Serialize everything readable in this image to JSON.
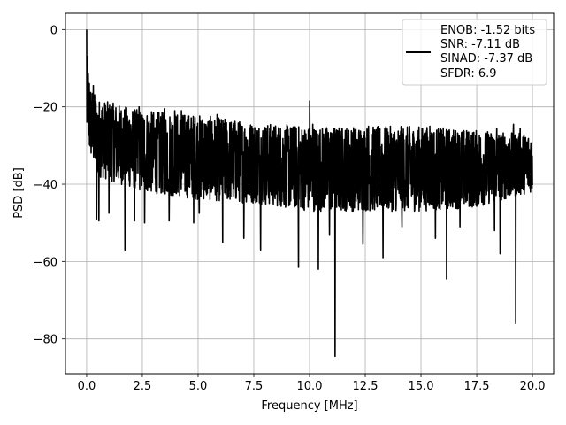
{
  "chart_data": {
    "type": "line",
    "title": "",
    "xlabel": "Frequency [MHz]",
    "ylabel": "PSD [dB]",
    "xlim": [
      -0.95,
      20.95
    ],
    "ylim": [
      -89,
      4.2
    ],
    "xticks": [
      0.0,
      2.5,
      5.0,
      7.5,
      10.0,
      12.5,
      15.0,
      17.5,
      20.0
    ],
    "xtick_labels": [
      "0.0",
      "2.5",
      "5.0",
      "7.5",
      "10.0",
      "12.5",
      "15.0",
      "17.5",
      "20.0"
    ],
    "yticks": [
      0,
      -20,
      -40,
      -60,
      -80
    ],
    "ytick_labels": [
      "0",
      "−20",
      "−40",
      "−60",
      "−80"
    ],
    "grid": true,
    "legend_position": "top-right",
    "legend_lines": [
      "ENOB: -1.52 bits",
      "SNR: -7.11 dB",
      "SINAD: -7.37 dB",
      "SFDR: 6.9"
    ],
    "series": [
      {
        "color": "#000000",
        "x_start": 0.0,
        "x_end": 20.0,
        "points": 2000,
        "envelope_upper": [
          [
            0.0,
            0.0
          ],
          [
            0.1,
            -14
          ],
          [
            0.5,
            -18
          ],
          [
            2.5,
            -21
          ],
          [
            5.0,
            -22
          ],
          [
            7.5,
            -24
          ],
          [
            10.0,
            -25
          ],
          [
            12.5,
            -25
          ],
          [
            15.0,
            -25
          ],
          [
            17.5,
            -26
          ],
          [
            20.0,
            -27
          ]
        ],
        "envelope_lower": [
          [
            0.0,
            -30
          ],
          [
            0.5,
            -38
          ],
          [
            2.5,
            -42
          ],
          [
            5.0,
            -44
          ],
          [
            7.5,
            -45
          ],
          [
            10.0,
            -47
          ],
          [
            12.5,
            -47
          ],
          [
            15.0,
            -47
          ],
          [
            17.5,
            -46
          ],
          [
            20.0,
            -42
          ]
        ],
        "peaks": [
          [
            0.0,
            0.0
          ],
          [
            0.03,
            -7
          ],
          [
            0.06,
            -12
          ],
          [
            0.12,
            -14
          ],
          [
            0.3,
            -14.5
          ],
          [
            1.15,
            -20
          ],
          [
            2.35,
            -20
          ],
          [
            3.5,
            -20.5
          ],
          [
            3.95,
            -21
          ],
          [
            4.25,
            -21
          ],
          [
            5.85,
            -22
          ],
          [
            10.0,
            -18.5
          ],
          [
            10.15,
            -24.5
          ],
          [
            12.65,
            -25
          ],
          [
            12.9,
            -26
          ],
          [
            15.4,
            -25
          ],
          [
            18.4,
            -25.5
          ],
          [
            19.15,
            -24.5
          ],
          [
            19.45,
            -25.5
          ]
        ],
        "dips": [
          [
            0.45,
            -49
          ],
          [
            0.55,
            -49.5
          ],
          [
            1.0,
            -47.5
          ],
          [
            1.72,
            -57
          ],
          [
            2.15,
            -49.5
          ],
          [
            2.6,
            -50
          ],
          [
            3.7,
            -49.5
          ],
          [
            4.8,
            -50
          ],
          [
            5.05,
            -47.5
          ],
          [
            6.1,
            -55
          ],
          [
            7.05,
            -54
          ],
          [
            7.8,
            -57
          ],
          [
            9.5,
            -61.5
          ],
          [
            10.4,
            -62
          ],
          [
            10.9,
            -53
          ],
          [
            11.15,
            -84.5
          ],
          [
            12.4,
            -55.5
          ],
          [
            13.3,
            -59
          ],
          [
            14.15,
            -51
          ],
          [
            15.65,
            -54
          ],
          [
            16.15,
            -64.5
          ],
          [
            16.75,
            -51
          ],
          [
            18.3,
            -52
          ],
          [
            18.55,
            -58
          ],
          [
            19.25,
            -76
          ]
        ]
      }
    ]
  }
}
